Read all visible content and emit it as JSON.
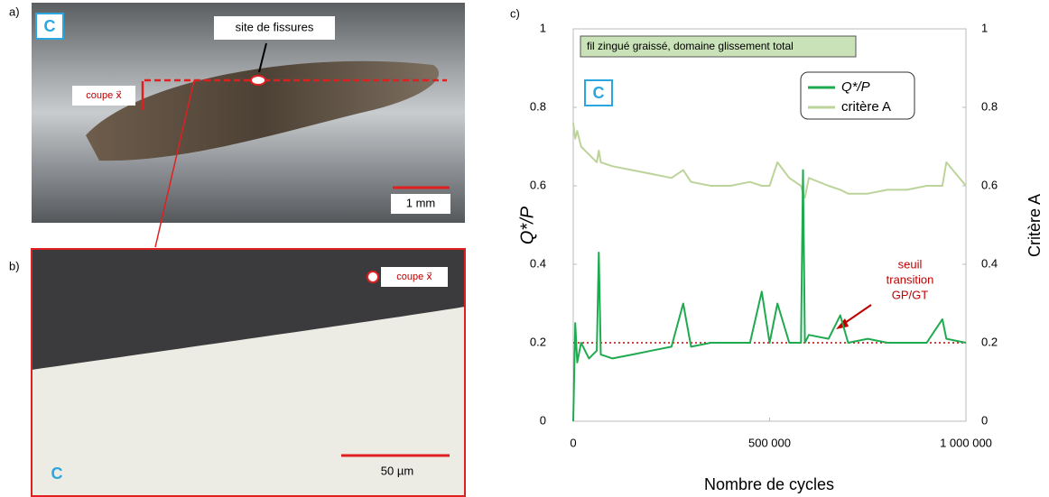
{
  "panels": {
    "a": {
      "label": "a)",
      "badge": "C",
      "callout": "site de fissures",
      "section": "coupe x⃗",
      "scale": "1 mm"
    },
    "b": {
      "label": "b)",
      "badge": "C",
      "section": "coupe x⃗",
      "scale": "50 µm"
    }
  },
  "chart_data": {
    "type": "line",
    "panel_label": "c)",
    "badge": "C",
    "annotation": "fil zingué graissé, domaine glissement total",
    "x_label": "Nombre de cycles",
    "y_label": "Q*/P",
    "y2_label": "Critère A",
    "x": [
      0,
      5000,
      10000,
      20000,
      40000,
      60000,
      65000,
      70000,
      100000,
      150000,
      200000,
      250000,
      280000,
      300000,
      350000,
      400000,
      450000,
      480000,
      500000,
      520000,
      550000,
      580000,
      585000,
      590000,
      600000,
      650000,
      680000,
      700000,
      750000,
      800000,
      850000,
      900000,
      940000,
      950000,
      1000000
    ],
    "series": [
      {
        "name": "Q*/P",
        "color": "#1faa4f",
        "values": [
          0,
          0.25,
          0.15,
          0.2,
          0.16,
          0.18,
          0.43,
          0.17,
          0.16,
          0.17,
          0.18,
          0.19,
          0.3,
          0.19,
          0.2,
          0.2,
          0.2,
          0.33,
          0.2,
          0.3,
          0.2,
          0.2,
          0.64,
          0.2,
          0.22,
          0.21,
          0.27,
          0.2,
          0.21,
          0.2,
          0.2,
          0.2,
          0.26,
          0.21,
          0.2
        ]
      },
      {
        "name": "critère A",
        "color": "#bcd49a",
        "axis": "y2",
        "values": [
          0.76,
          0.72,
          0.74,
          0.7,
          0.68,
          0.66,
          0.69,
          0.66,
          0.65,
          0.64,
          0.63,
          0.62,
          0.64,
          0.61,
          0.6,
          0.6,
          0.61,
          0.6,
          0.6,
          0.66,
          0.62,
          0.6,
          0.58,
          0.57,
          0.62,
          0.6,
          0.59,
          0.58,
          0.58,
          0.59,
          0.59,
          0.6,
          0.6,
          0.66,
          0.6
        ]
      }
    ],
    "threshold": {
      "value": 0.2,
      "color": "#c00000",
      "label": [
        "seuil",
        "transition",
        "GP/GT"
      ]
    },
    "xlim": [
      0,
      1000000
    ],
    "xticks": [
      {
        "value": 0,
        "label": "0"
      },
      {
        "value": 500000,
        "label": "500 000"
      },
      {
        "value": 1000000,
        "label": "1 000 000"
      }
    ],
    "ylim": [
      0,
      1
    ],
    "yticks": [
      0,
      0.2,
      0.4,
      0.6,
      0.8,
      1
    ],
    "y2lim": [
      0,
      1
    ],
    "y2ticks": [
      0,
      0.2,
      0.4,
      0.6,
      0.8,
      1
    ],
    "legend": "upper right"
  }
}
